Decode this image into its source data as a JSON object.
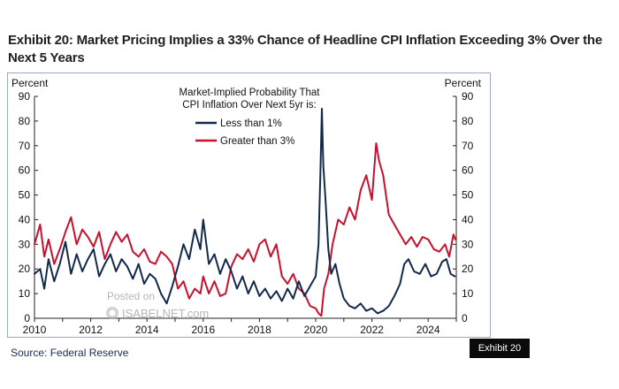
{
  "title": "Exhibit 20: Market Pricing Implies a 33% Chance of Headline CPI Inflation Exceeding 3% Over the Next 5 Years",
  "source": "Source: Federal Reserve",
  "exhibit_tag": "Exhibit 20",
  "watermark": {
    "line1": "Posted on",
    "line2": "ISABELNET.com"
  },
  "chart_data": {
    "type": "line",
    "title": "Market-Implied  Probability That CPI Inflation  Over  Next  5yr is:",
    "legend_title_lines": [
      "Market-Implied  Probability That",
      "CPI Inflation  Over  Next  5yr is:"
    ],
    "ylabel_left": "Percent",
    "ylabel_right": "Percent",
    "ylim": [
      0,
      90
    ],
    "yticks": [
      0,
      10,
      20,
      30,
      40,
      50,
      60,
      70,
      80,
      90
    ],
    "xlim": [
      2010.0,
      2025.0
    ],
    "xticks": [
      2010,
      2012,
      2014,
      2016,
      2018,
      2020,
      2022,
      2024
    ],
    "legend_position": "top-center",
    "series": [
      {
        "name": "Less than 1%",
        "color": "#13294b",
        "x": [
          2010.0,
          2010.2,
          2010.35,
          2010.5,
          2010.7,
          2010.9,
          2011.1,
          2011.3,
          2011.5,
          2011.7,
          2011.9,
          2012.1,
          2012.3,
          2012.5,
          2012.7,
          2012.9,
          2013.1,
          2013.3,
          2013.5,
          2013.7,
          2013.9,
          2014.1,
          2014.3,
          2014.5,
          2014.7,
          2014.9,
          2015.1,
          2015.3,
          2015.5,
          2015.7,
          2015.9,
          2016.0,
          2016.2,
          2016.4,
          2016.6,
          2016.8,
          2017.0,
          2017.2,
          2017.4,
          2017.6,
          2017.8,
          2018.0,
          2018.2,
          2018.4,
          2018.6,
          2018.8,
          2019.0,
          2019.2,
          2019.4,
          2019.6,
          2019.8,
          2020.0,
          2020.1,
          2020.17,
          2020.22,
          2020.27,
          2020.35,
          2020.45,
          2020.55,
          2020.7,
          2020.85,
          2021.0,
          2021.2,
          2021.4,
          2021.6,
          2021.8,
          2022.0,
          2022.2,
          2022.4,
          2022.6,
          2022.8,
          2023.0,
          2023.15,
          2023.3,
          2023.5,
          2023.7,
          2023.9,
          2024.1,
          2024.3,
          2024.5,
          2024.65,
          2024.8,
          2024.95
        ],
        "values": [
          18,
          20,
          12,
          24,
          15,
          22,
          31,
          18,
          26,
          19,
          24,
          28,
          17,
          22,
          26,
          19,
          24,
          21,
          16,
          22,
          14,
          18,
          16,
          10,
          6,
          13,
          21,
          30,
          24,
          36,
          28,
          40,
          22,
          26,
          18,
          24,
          19,
          12,
          17,
          10,
          15,
          9,
          12,
          8,
          11,
          7,
          12,
          8,
          15,
          9,
          13,
          17,
          30,
          60,
          85,
          62,
          48,
          28,
          18,
          22,
          14,
          8,
          5,
          4,
          6,
          3,
          4,
          2,
          3,
          5,
          9,
          14,
          22,
          24,
          19,
          18,
          22,
          17,
          18,
          23,
          24,
          18,
          17
        ]
      },
      {
        "name": "Greater than 3%",
        "color": "#c8102e",
        "x": [
          2010.0,
          2010.2,
          2010.35,
          2010.5,
          2010.7,
          2010.9,
          2011.1,
          2011.3,
          2011.5,
          2011.7,
          2011.9,
          2012.1,
          2012.3,
          2012.5,
          2012.7,
          2012.9,
          2013.1,
          2013.3,
          2013.5,
          2013.7,
          2013.9,
          2014.1,
          2014.3,
          2014.5,
          2014.7,
          2014.9,
          2015.1,
          2015.3,
          2015.5,
          2015.7,
          2015.9,
          2016.0,
          2016.2,
          2016.4,
          2016.6,
          2016.8,
          2017.0,
          2017.2,
          2017.4,
          2017.6,
          2017.8,
          2018.0,
          2018.2,
          2018.4,
          2018.6,
          2018.8,
          2019.0,
          2019.2,
          2019.4,
          2019.6,
          2019.8,
          2020.0,
          2020.1,
          2020.2,
          2020.3,
          2020.45,
          2020.6,
          2020.8,
          2021.0,
          2021.2,
          2021.4,
          2021.6,
          2021.8,
          2022.0,
          2022.15,
          2022.25,
          2022.4,
          2022.6,
          2022.8,
          2023.0,
          2023.2,
          2023.4,
          2023.6,
          2023.8,
          2024.0,
          2024.2,
          2024.4,
          2024.6,
          2024.75,
          2024.9,
          2024.97
        ],
        "values": [
          30,
          38,
          25,
          32,
          22,
          28,
          35,
          41,
          30,
          36,
          33,
          29,
          35,
          24,
          30,
          35,
          31,
          34,
          27,
          25,
          28,
          23,
          22,
          27,
          25,
          22,
          12,
          15,
          8,
          12,
          10,
          17,
          10,
          15,
          9,
          10,
          21,
          26,
          24,
          28,
          23,
          30,
          32,
          25,
          30,
          17,
          14,
          18,
          12,
          10,
          5,
          4,
          2,
          1,
          12,
          18,
          30,
          40,
          38,
          45,
          40,
          52,
          58,
          48,
          71,
          64,
          58,
          42,
          38,
          34,
          30,
          33,
          29,
          33,
          32,
          28,
          27,
          30,
          25,
          34,
          32
        ]
      }
    ]
  }
}
